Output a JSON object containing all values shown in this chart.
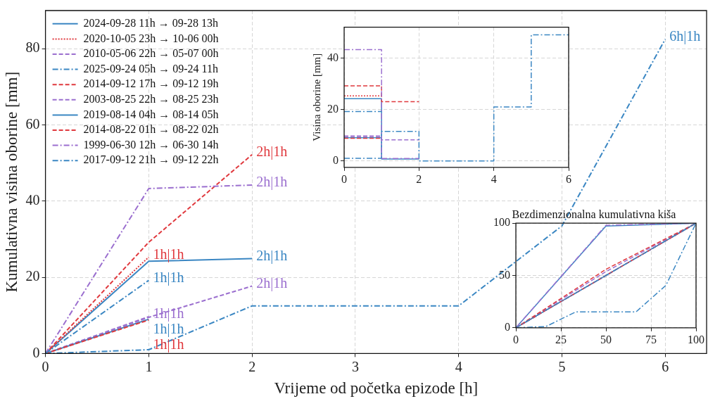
{
  "chart_data": [
    {
      "type": "line",
      "xlabel": "Vrijeme od početka epizode [h]",
      "ylabel": "Kumulativna visina oborine [mm]",
      "xlim": [
        0,
        6.4
      ],
      "ylim": [
        0,
        90
      ],
      "xticks": [
        0,
        1,
        2,
        3,
        4,
        5,
        6
      ],
      "yticks": [
        0,
        20,
        40,
        60,
        80
      ],
      "grid": true,
      "legend": "top left",
      "annotations": [
        {
          "text": "2h|1h",
          "x": 2,
          "y": 24.9
        },
        {
          "text": "1h|1h",
          "x": 1,
          "y": 25.3
        },
        {
          "text": "2h|1h",
          "x": 2,
          "y": 17.7
        },
        {
          "text": "6h|1h",
          "x": 6,
          "y": 82.5
        },
        {
          "text": "2h|1h",
          "x": 2,
          "y": 52.2
        },
        {
          "text": "1h|1h",
          "x": 1,
          "y": 9.7
        },
        {
          "text": "1h|1h",
          "x": 1,
          "y": 9.0
        },
        {
          "text": "1h|1h",
          "x": 1,
          "y": 8.8
        },
        {
          "text": "2h|1h",
          "x": 2,
          "y": 44.2
        },
        {
          "text": "1h|1h",
          "x": 1,
          "y": 19.2
        }
      ],
      "series": [
        {
          "name": "2024-09-28 11h → 09-28 13h",
          "color": "#3b87c3",
          "line_style": "solid",
          "x": [
            0,
            1,
            2
          ],
          "values": [
            0,
            24.2,
            24.9
          ]
        },
        {
          "name": "2020-10-05 23h → 10-06 00h",
          "color": "#e0393e",
          "line_style": "dotted",
          "x": [
            0,
            1
          ],
          "values": [
            0,
            25.3
          ]
        },
        {
          "name": "2010-05-06 22h → 05-07 00h",
          "color": "#9b6fcf",
          "line_style": "dashed",
          "x": [
            0,
            1,
            2
          ],
          "values": [
            0,
            9.5,
            17.7
          ]
        },
        {
          "name": "2025-09-24 05h → 09-24 11h",
          "color": "#3b87c3",
          "line_style": "dashdot",
          "x": [
            0,
            1,
            2,
            4,
            5,
            6
          ],
          "values": [
            0,
            1.0,
            12.5,
            12.5,
            33.5,
            82.5
          ]
        },
        {
          "name": "2014-09-12 17h → 09-12 19h",
          "color": "#e0393e",
          "line_style": "dashed",
          "x": [
            0,
            1,
            2
          ],
          "values": [
            0,
            29.2,
            52.2
          ]
        },
        {
          "name": "2003-08-25 22h → 08-25 23h",
          "color": "#9b6fcf",
          "line_style": "dashed",
          "x": [
            0,
            1
          ],
          "values": [
            0,
            9.7
          ]
        },
        {
          "name": "2019-08-14 04h → 08-14 05h",
          "color": "#3b87c3",
          "line_style": "solid",
          "x": [
            0,
            1
          ],
          "values": [
            0,
            9.0
          ]
        },
        {
          "name": "2014-08-22 01h → 08-22 02h",
          "color": "#e0393e",
          "line_style": "dashed",
          "x": [
            0,
            1
          ],
          "values": [
            0,
            8.8
          ]
        },
        {
          "name": "1999-06-30 12h → 06-30 14h",
          "color": "#9b6fcf",
          "line_style": "dashdot",
          "x": [
            0,
            1,
            2
          ],
          "values": [
            0,
            43.3,
            44.2
          ]
        },
        {
          "name": "2017-09-12 21h → 09-12 22h",
          "color": "#3b87c3",
          "line_style": "dashdot",
          "x": [
            0,
            1
          ],
          "values": [
            0,
            19.2
          ]
        }
      ]
    },
    {
      "type": "step",
      "ylabel": "Visina oborine [mm]",
      "xlim": [
        0,
        6
      ],
      "ylim": [
        -2.5,
        52
      ],
      "xticks": [
        0,
        2,
        4,
        6
      ],
      "yticks": [
        0,
        20,
        40
      ],
      "grid": true,
      "series": [
        {
          "color": "#3b87c3",
          "line_style": "solid",
          "x": [
            0,
            1,
            2
          ],
          "values": [
            24.2,
            0.7,
            0.7
          ]
        },
        {
          "color": "#e0393e",
          "line_style": "dotted",
          "x": [
            0,
            1
          ],
          "values": [
            25.3,
            25.3
          ]
        },
        {
          "color": "#9b6fcf",
          "line_style": "dashed",
          "x": [
            0,
            1,
            2
          ],
          "values": [
            9.5,
            8.2,
            8.2
          ]
        },
        {
          "color": "#3b87c3",
          "line_style": "dashdot",
          "x": [
            0,
            1,
            2,
            3,
            4,
            5,
            6
          ],
          "values": [
            1.0,
            11.5,
            0,
            0,
            21,
            49,
            49
          ]
        },
        {
          "color": "#e0393e",
          "line_style": "dashed",
          "x": [
            0,
            1,
            2
          ],
          "values": [
            29.2,
            23,
            23
          ]
        },
        {
          "color": "#9b6fcf",
          "line_style": "dashed",
          "x": [
            0,
            1
          ],
          "values": [
            9.7,
            9.7
          ]
        },
        {
          "color": "#3b87c3",
          "line_style": "solid",
          "x": [
            0,
            1
          ],
          "values": [
            9.0,
            9.0
          ]
        },
        {
          "color": "#e0393e",
          "line_style": "dashed",
          "x": [
            0,
            1
          ],
          "values": [
            8.8,
            8.8
          ]
        },
        {
          "color": "#9b6fcf",
          "line_style": "dashdot",
          "x": [
            0,
            1,
            2
          ],
          "values": [
            43.3,
            0.9,
            0.9
          ]
        },
        {
          "color": "#3b87c3",
          "line_style": "dashdot",
          "x": [
            0,
            1
          ],
          "values": [
            19.2,
            19.2
          ]
        }
      ]
    },
    {
      "type": "line",
      "title": "Bezdimenzionalna kumulativna kiša",
      "xlim": [
        0,
        100
      ],
      "ylim": [
        0,
        100
      ],
      "xticks": [
        0,
        25,
        50,
        75,
        100
      ],
      "yticks": [
        0,
        50,
        100
      ],
      "grid": true,
      "series": [
        {
          "color": "#3b87c3",
          "line_style": "solid",
          "x": [
            0,
            50,
            100
          ],
          "values": [
            0,
            97.2,
            100
          ]
        },
        {
          "color": "#e0393e",
          "line_style": "dotted",
          "x": [
            0,
            100
          ],
          "values": [
            0,
            100
          ]
        },
        {
          "color": "#9b6fcf",
          "line_style": "dashed",
          "x": [
            0,
            50,
            100
          ],
          "values": [
            0,
            53.7,
            100
          ]
        },
        {
          "color": "#3b87c3",
          "line_style": "dashdot",
          "x": [
            0,
            16.7,
            33.3,
            50,
            66.7,
            83.3,
            100
          ],
          "values": [
            0,
            1.2,
            15.2,
            15.2,
            15.2,
            40.6,
            100
          ]
        },
        {
          "color": "#e0393e",
          "line_style": "dashed",
          "x": [
            0,
            50,
            100
          ],
          "values": [
            0,
            55.9,
            100
          ]
        },
        {
          "color": "#9b6fcf",
          "line_style": "dashed",
          "x": [
            0,
            100
          ],
          "values": [
            0,
            100
          ]
        },
        {
          "color": "#3b87c3",
          "line_style": "solid",
          "x": [
            0,
            100
          ],
          "values": [
            0,
            100
          ]
        },
        {
          "color": "#e0393e",
          "line_style": "dashed",
          "x": [
            0,
            100
          ],
          "values": [
            0,
            100
          ]
        },
        {
          "color": "#9b6fcf",
          "line_style": "dashdot",
          "x": [
            0,
            50,
            100
          ],
          "values": [
            0,
            98,
            100
          ]
        },
        {
          "color": "#3b87c3",
          "line_style": "dashdot",
          "x": [
            0,
            100
          ],
          "values": [
            0,
            100
          ]
        }
      ]
    }
  ]
}
